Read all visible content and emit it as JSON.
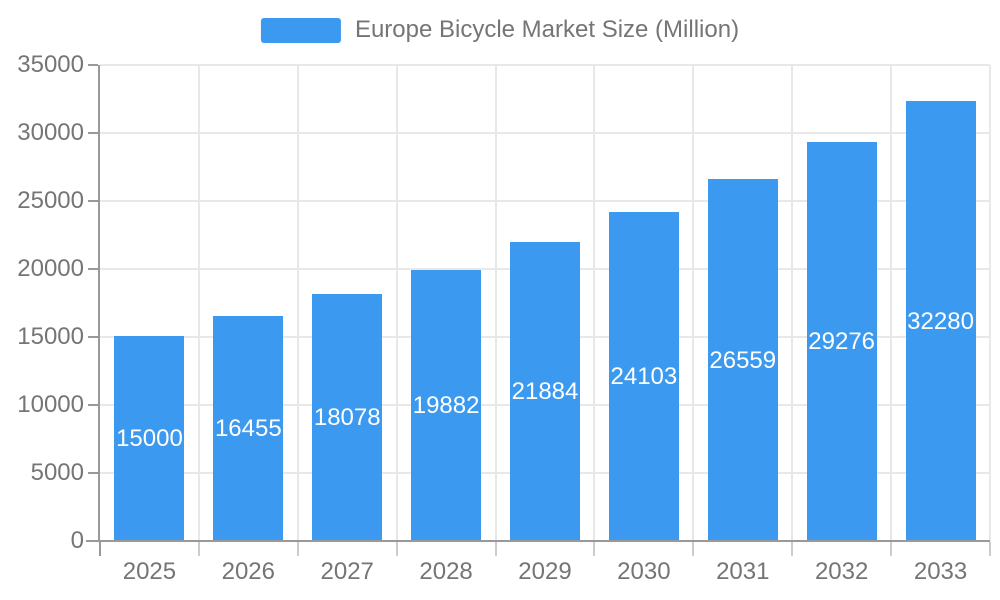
{
  "chart_data": {
    "type": "bar",
    "title": "Europe Bicycle Market Size (Million)",
    "legend": [
      "Europe Bicycle Market Size (Million)"
    ],
    "legend_position": "top",
    "categories": [
      "2025",
      "2026",
      "2027",
      "2028",
      "2029",
      "2030",
      "2031",
      "2032",
      "2033"
    ],
    "values": [
      15000,
      16455,
      18078,
      19882,
      21884,
      24103,
      26559,
      29276,
      32280
    ],
    "xlabel": "",
    "ylabel": "",
    "ylim": [
      0,
      35000
    ],
    "y_ticks": [
      0,
      5000,
      10000,
      15000,
      20000,
      25000,
      30000,
      35000
    ],
    "grid": true,
    "value_labels_position": "inside-center",
    "colors": {
      "bar": "#3b99f0",
      "bar_value_label": "#ffffff",
      "axis_text": "#757575",
      "axis_line": "#999999",
      "tick_line": "#cccccc",
      "gridline": "#e8e8e8",
      "background": "#ffffff"
    }
  }
}
